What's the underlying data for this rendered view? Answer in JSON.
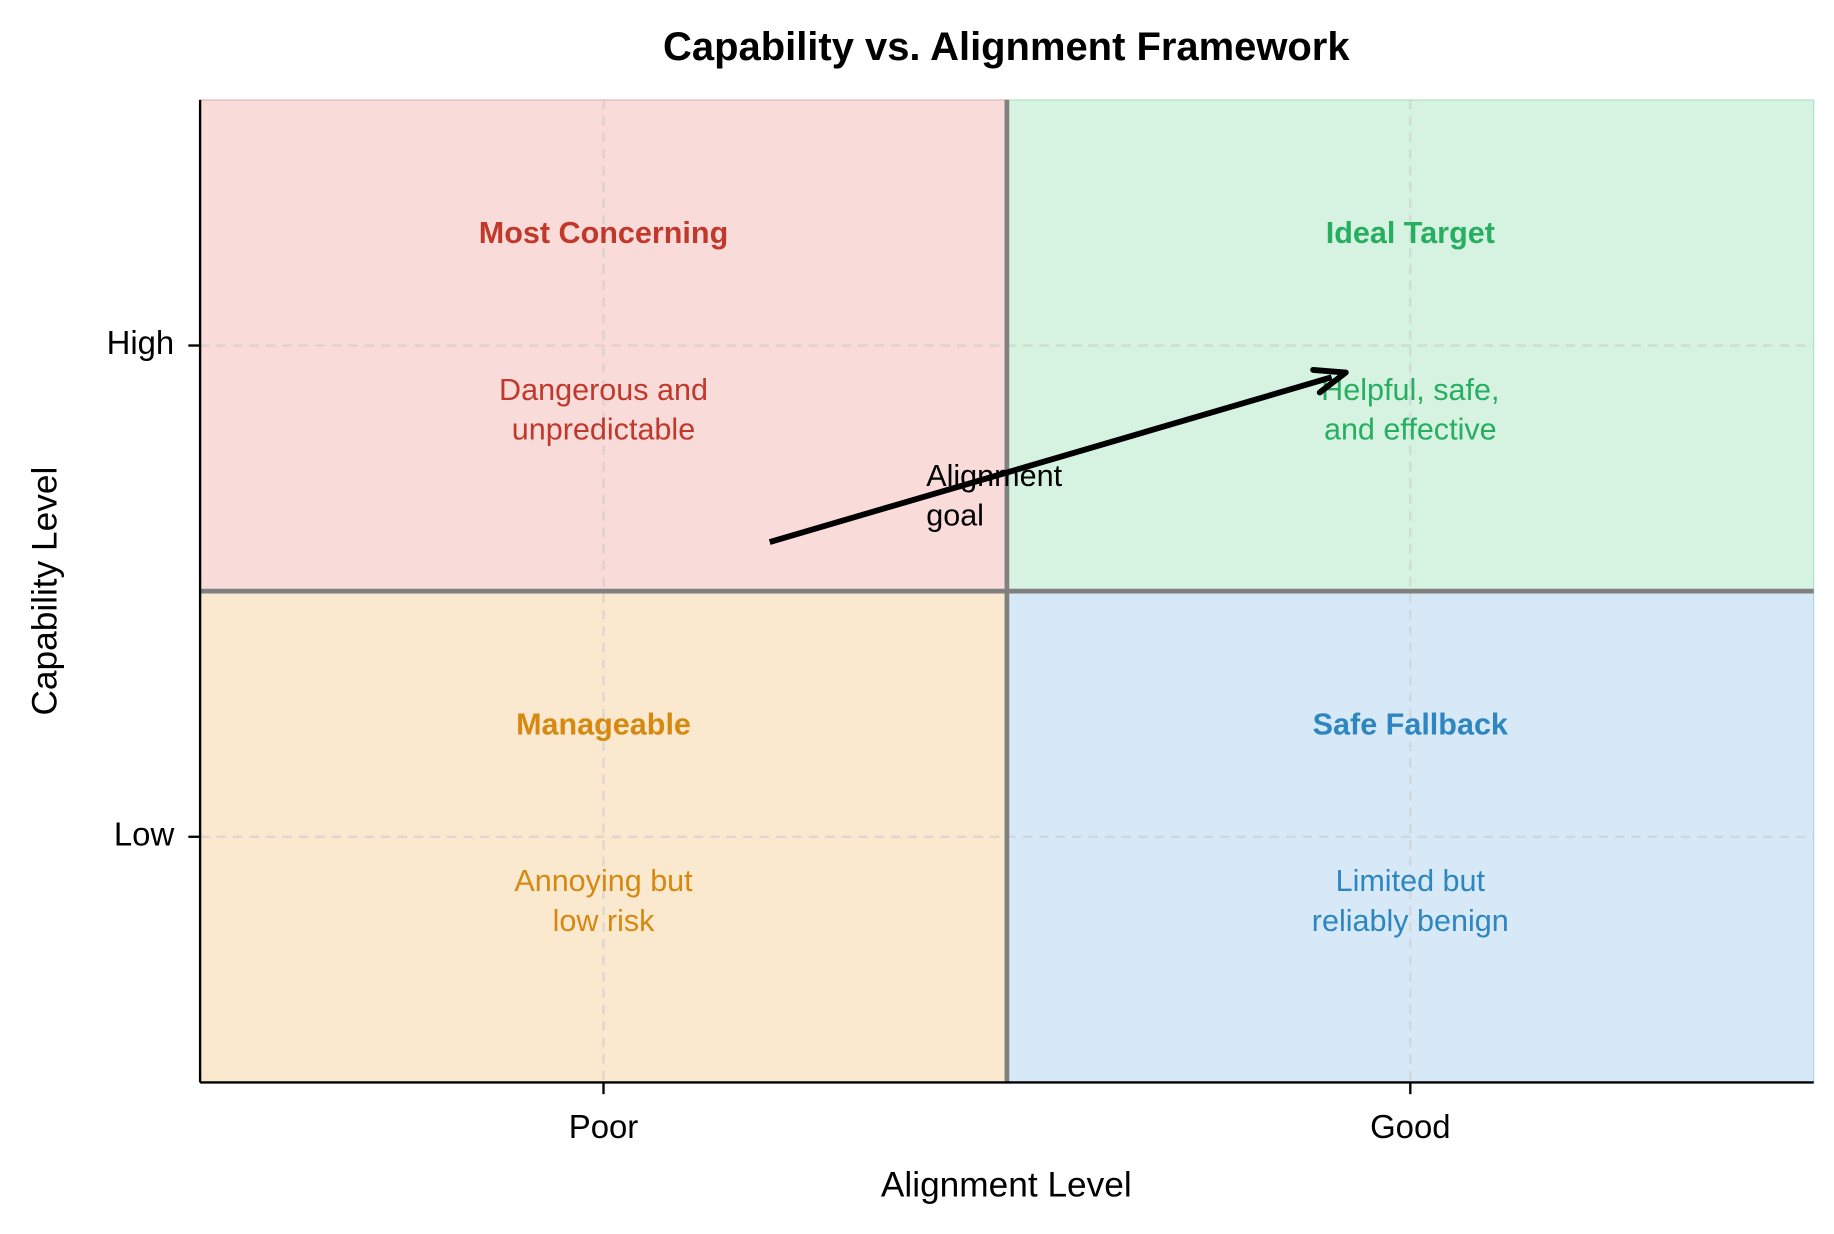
{
  "chart_data": {
    "type": "quadrant",
    "title": "Capability vs. Alignment Framework",
    "x_label": "Alignment Level",
    "y_label": "Capability Level",
    "xlim": [
      0,
      2
    ],
    "ylim": [
      0,
      2
    ],
    "xticks": [
      {
        "value": 0.5,
        "label": "Poor"
      },
      {
        "value": 1.5,
        "label": "Good"
      }
    ],
    "yticks": [
      {
        "value": 0.5,
        "label": "Low"
      },
      {
        "value": 1.5,
        "label": "High"
      }
    ],
    "grid": true,
    "quadrants": [
      {
        "title": "Most Concerning",
        "description": "Dangerous and\nunpredictable",
        "color": "#c0392b",
        "fill": "#f9dbd9"
      },
      {
        "title": "Ideal Target",
        "description": "Helpful, safe,\nand effective",
        "color": "#27ae60",
        "fill": "#d6f3e2"
      },
      {
        "title": "Manageable",
        "description": "Annoying but\nlow risk",
        "color": "#d68910",
        "fill": "#fbe9cf"
      },
      {
        "title": "Safe Fallback",
        "description": "Limited but\nreliably benign",
        "color": "#2e86c1",
        "fill": "#d7e9f7"
      }
    ],
    "annotation": "Alignment\ngoal"
  }
}
